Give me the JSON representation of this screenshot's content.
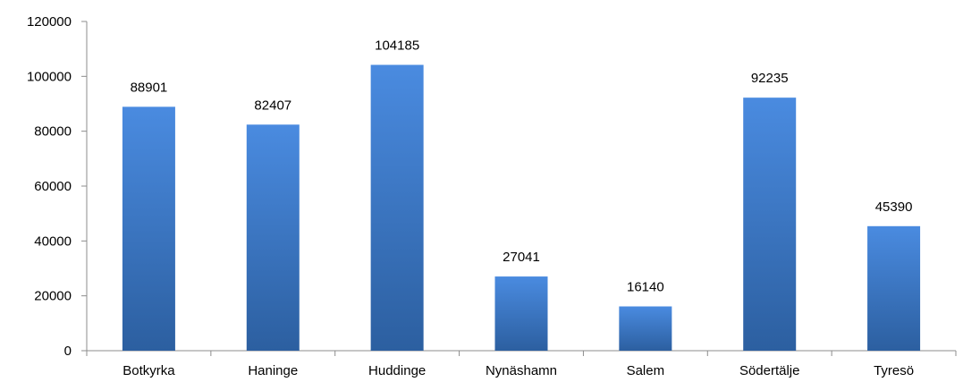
{
  "chart_data": {
    "type": "bar",
    "title": "",
    "xlabel": "",
    "ylabel": "",
    "categories": [
      "Botkyrka",
      "Haninge",
      "Huddinge",
      "Nynäshamn",
      "Salem",
      "Södertälje",
      "Tyresö"
    ],
    "values": [
      88901,
      82407,
      104185,
      27041,
      16140,
      92235,
      45390
    ],
    "value_labels": [
      "88901",
      "82407",
      "104185",
      "27041",
      "16140",
      "92235",
      "45390"
    ],
    "ylim": [
      0,
      120000
    ],
    "yticks": [
      "0",
      "20000",
      "40000",
      "60000",
      "80000",
      "100000",
      "120000"
    ],
    "grid": false,
    "legend": "none",
    "bar_color_top": "#4a8be0",
    "bar_color_bottom": "#2c5fa0"
  }
}
